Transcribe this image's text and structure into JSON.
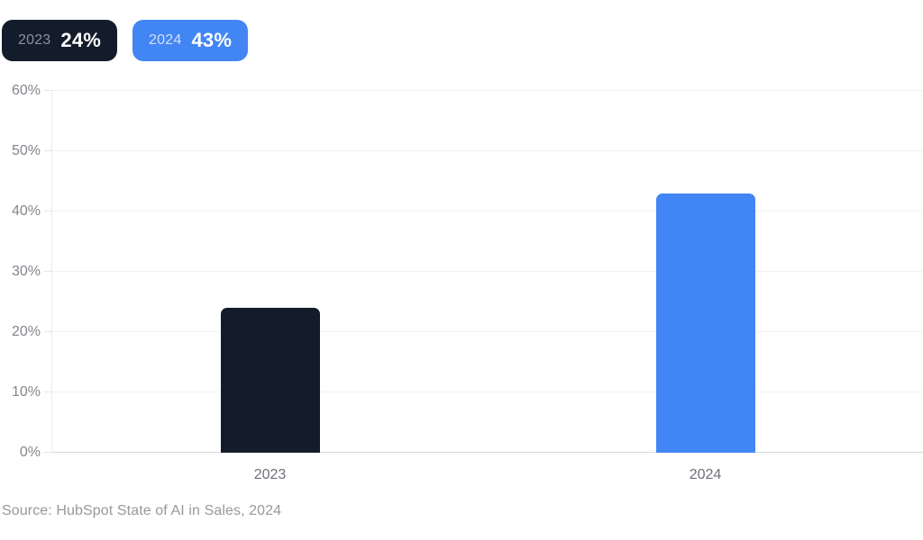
{
  "legend": [
    {
      "year": "2023",
      "value_label": "24%",
      "bg": "#131c2b",
      "year_color": "#8a92a1",
      "value_color": "#ffffff"
    },
    {
      "year": "2024",
      "value_label": "43%",
      "bg": "#4285f4",
      "year_color": "#cfe0fb",
      "value_color": "#ffffff"
    }
  ],
  "source_note": "Source: HubSpot State of AI in Sales, 2024",
  "chart_data": {
    "type": "bar",
    "categories": [
      "2023",
      "2024"
    ],
    "values": [
      24,
      43
    ],
    "unit": "%",
    "bar_colors": [
      "#131c2b",
      "#4285f4"
    ],
    "title": "",
    "xlabel": "",
    "ylabel": "",
    "ylim": [
      0,
      60
    ],
    "ytick_step": 10,
    "ytick_labels": [
      "0%",
      "10%",
      "20%",
      "30%",
      "40%",
      "50%",
      "60%"
    ],
    "grid": "horizontal",
    "legend_position": "top-left"
  },
  "colors": {
    "background": "#ffffff",
    "gridline": "#f2f2f5",
    "baseline": "#d8d9dd",
    "axis_line": "#ebebee",
    "y_label_text": "#85868c",
    "x_label_text": "#6d7077",
    "source_text": "#97989d"
  }
}
